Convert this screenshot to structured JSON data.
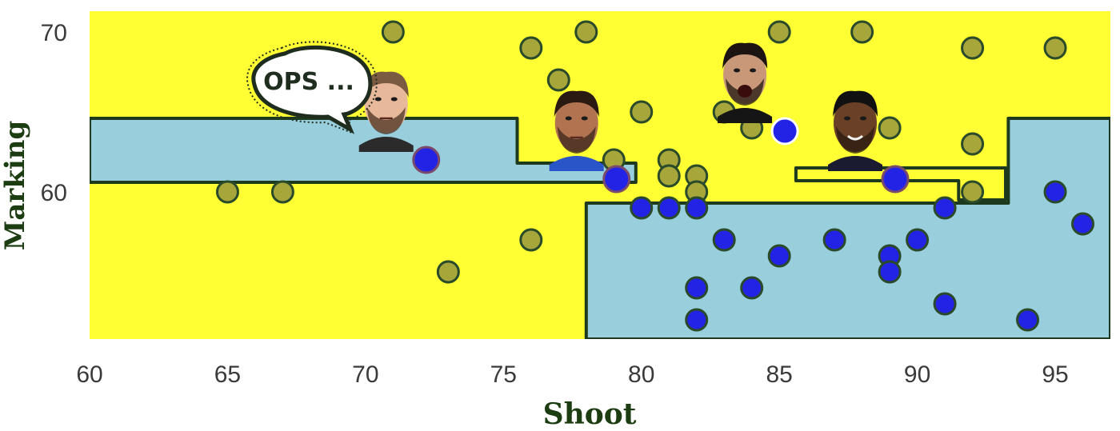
{
  "chart_data": {
    "type": "scatter",
    "title": "",
    "xlabel": "Shoot",
    "ylabel": "Marking",
    "xlim": [
      60,
      97
    ],
    "ylim": [
      50.8,
      71.3
    ],
    "xticks": [
      60,
      65,
      70,
      75,
      80,
      85,
      90,
      95
    ],
    "yticks": [
      60,
      70
    ],
    "grid": false,
    "legend": "none",
    "colors": {
      "region_a": "#ffff33",
      "region_b": "#99cedd",
      "boundary": "#1e3a1e",
      "class_a": "#a6a63a",
      "class_b": "#2323e6",
      "point_edge": "#2a4a2a"
    },
    "decision_regions": {
      "region_b_polygons": [
        [
          [
            60,
            64.6
          ],
          [
            75.5,
            64.6
          ],
          [
            75.5,
            61.8
          ],
          [
            79.8,
            61.8
          ],
          [
            79.8,
            60.6
          ],
          [
            60,
            60.6
          ]
        ],
        [
          [
            78,
            50.8
          ],
          [
            78,
            59.3
          ],
          [
            93.3,
            59.3
          ],
          [
            93.3,
            64.6
          ],
          [
            97,
            64.6
          ],
          [
            97,
            50.8
          ]
        ]
      ],
      "region_a_holes_inside_b": [
        [
          [
            85.6,
            61.5
          ],
          [
            93.2,
            61.5
          ],
          [
            93.2,
            59.5
          ],
          [
            91.5,
            59.5
          ],
          [
            91.5,
            60.7
          ],
          [
            85.6,
            60.7
          ]
        ]
      ]
    },
    "series": [
      {
        "x": [
          71,
          78,
          88,
          85,
          76,
          77,
          92,
          95,
          84,
          80,
          83,
          84,
          89,
          79,
          92,
          81,
          81,
          82,
          82,
          92,
          65,
          67,
          76,
          73
        ],
        "y": [
          70,
          70,
          70,
          70,
          69,
          67,
          69,
          69,
          67,
          65,
          65,
          64,
          64,
          62,
          63,
          62,
          61,
          61,
          60,
          60,
          60,
          60,
          57,
          55
        ]
      },
      {
        "x": [
          80,
          81,
          82,
          91,
          95,
          96,
          83,
          87,
          90,
          85,
          89,
          89,
          82,
          84,
          91,
          82,
          94
        ],
        "y": [
          59,
          59,
          59,
          59,
          60,
          58,
          57,
          57,
          57,
          56,
          56,
          55,
          54,
          54,
          53,
          52,
          52
        ]
      }
    ],
    "highlighted_points": [
      {
        "x": 72.2,
        "y": 62.0,
        "face": "bearded-player-face"
      },
      {
        "x": 79.1,
        "y": 60.8,
        "face": "curly-haired-player-face"
      },
      {
        "x": 85.2,
        "y": 63.8,
        "face": "shouting-player-face"
      },
      {
        "x": 89.2,
        "y": 60.8,
        "face": "smiling-player-face"
      }
    ],
    "annotations": [
      {
        "text": "OPS ..."
      }
    ]
  }
}
